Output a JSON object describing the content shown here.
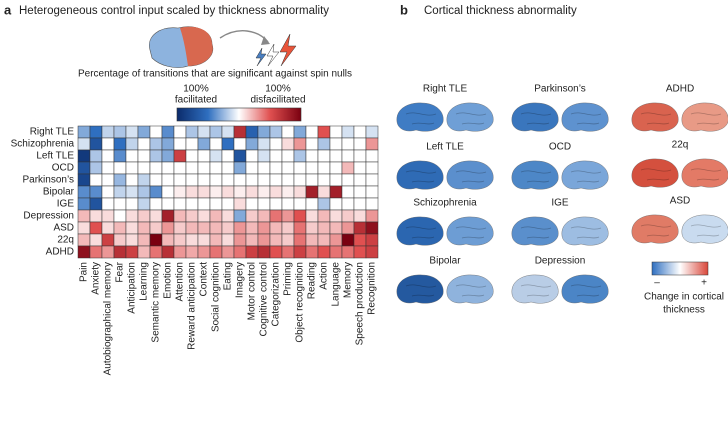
{
  "chart_data": {
    "type": "heatmap",
    "panel_label": "a",
    "title": "Heterogeneous control input scaled by thickness abnormality",
    "subtitle": "Percentage of transitions that are significant against spin nulls",
    "colorbar": {
      "min": [
        "100%",
        "facilitated"
      ],
      "max": [
        "100%",
        "disfacilitated"
      ]
    },
    "zlim": [
      -100,
      100
    ],
    "rows": [
      "Right TLE",
      "Schizophrenia",
      "Left TLE",
      "OCD",
      "Parkinson’s",
      "Bipolar",
      "IGE",
      "Depression",
      "ASD",
      "22q",
      "ADHD"
    ],
    "categories": [
      "Pain",
      "Anxiety",
      "Autobiographical memory",
      "Fear",
      "Anticipation",
      "Learning",
      "Semantic memory",
      "Emotion",
      "Attention",
      "Reward anticipation",
      "Context",
      "Social cognition",
      "Eating",
      "Imagery",
      "Motor control",
      "Cognitive control",
      "Categorization",
      "Priming",
      "Object recognition",
      "Reading",
      "Action",
      "Language",
      "Memory",
      "Speech production",
      "Recognition"
    ],
    "values": [
      [
        -30,
        -50,
        -15,
        -20,
        -10,
        -30,
        0,
        -40,
        0,
        -20,
        -10,
        -20,
        -10,
        70,
        -60,
        -30,
        -20,
        0,
        -30,
        0,
        50,
        0,
        -10,
        0,
        -10
      ],
      [
        -10,
        -70,
        0,
        -50,
        -15,
        0,
        -20,
        -30,
        0,
        0,
        -30,
        0,
        -50,
        0,
        -30,
        -10,
        0,
        10,
        30,
        0,
        -20,
        0,
        0,
        0,
        30
      ],
      [
        -90,
        -20,
        0,
        -40,
        0,
        0,
        -20,
        -30,
        60,
        0,
        0,
        -10,
        0,
        -70,
        0,
        -10,
        0,
        0,
        -20,
        0,
        0,
        0,
        0,
        0,
        0
      ],
      [
        -70,
        -20,
        0,
        0,
        0,
        0,
        0,
        0,
        0,
        0,
        0,
        0,
        0,
        -30,
        0,
        0,
        0,
        0,
        0,
        0,
        0,
        0,
        20,
        0,
        0
      ],
      [
        -80,
        0,
        0,
        -25,
        0,
        -15,
        0,
        0,
        0,
        0,
        0,
        0,
        0,
        0,
        0,
        0,
        0,
        0,
        0,
        0,
        0,
        0,
        0,
        0,
        0
      ],
      [
        -40,
        -40,
        0,
        -15,
        -10,
        -20,
        -40,
        0,
        5,
        10,
        10,
        5,
        10,
        5,
        10,
        5,
        10,
        5,
        10,
        80,
        10,
        80,
        0,
        0,
        0
      ],
      [
        -40,
        -70,
        0,
        0,
        0,
        -15,
        0,
        0,
        0,
        0,
        0,
        0,
        0,
        10,
        0,
        0,
        0,
        0,
        0,
        0,
        -20,
        0,
        0,
        0,
        0
      ],
      [
        20,
        10,
        10,
        0,
        10,
        15,
        10,
        80,
        20,
        15,
        10,
        20,
        10,
        -30,
        15,
        20,
        40,
        30,
        50,
        10,
        20,
        10,
        15,
        10,
        30
      ],
      [
        10,
        50,
        10,
        20,
        10,
        20,
        15,
        30,
        15,
        20,
        20,
        20,
        15,
        30,
        20,
        30,
        20,
        15,
        40,
        15,
        20,
        20,
        30,
        70,
        90
      ],
      [
        20,
        10,
        60,
        15,
        10,
        20,
        100,
        20,
        15,
        10,
        10,
        20,
        10,
        30,
        20,
        30,
        20,
        15,
        40,
        20,
        20,
        30,
        100,
        50,
        60
      ],
      [
        90,
        40,
        30,
        70,
        60,
        20,
        40,
        70,
        30,
        25,
        30,
        40,
        30,
        40,
        60,
        70,
        50,
        40,
        60,
        40,
        50,
        40,
        40,
        50,
        60
      ]
    ]
  },
  "panel_b": {
    "panel_label": "b",
    "title": "Cortical thickness abnormality",
    "brains": [
      {
        "label": "Right TLE",
        "colors": [
          "#3f7cc4",
          "#6f9fd6"
        ]
      },
      {
        "label": "Parkinson’s",
        "colors": [
          "#3a76bd",
          "#5e92cf"
        ]
      },
      {
        "label": "ADHD",
        "colors": [
          "#d9634f",
          "#e89a86"
        ]
      },
      {
        "label": "Left TLE",
        "colors": [
          "#2f6bb5",
          "#5b8fcd"
        ]
      },
      {
        "label": "OCD",
        "colors": [
          "#4d87c7",
          "#7aa6d9"
        ]
      },
      {
        "label": "22q",
        "colors": [
          "#d4503e",
          "#e37a66"
        ]
      },
      {
        "label": "Schizophrenia",
        "colors": [
          "#2b66b0",
          "#6d9dd4"
        ]
      },
      {
        "label": "IGE",
        "colors": [
          "#5a8fcc",
          "#9dbde2"
        ]
      },
      {
        "label": "ASD",
        "colors": [
          "#e07b66",
          "#c9dbef"
        ]
      },
      {
        "label": "Bipolar",
        "colors": [
          "#24599f",
          "#8fb3dd"
        ]
      },
      {
        "label": "Depression",
        "colors": [
          "#b9cde6",
          "#4b85c6"
        ]
      }
    ],
    "legend": {
      "min": "–",
      "max": "+",
      "title": [
        "Change in cortical",
        "thickness"
      ]
    }
  }
}
